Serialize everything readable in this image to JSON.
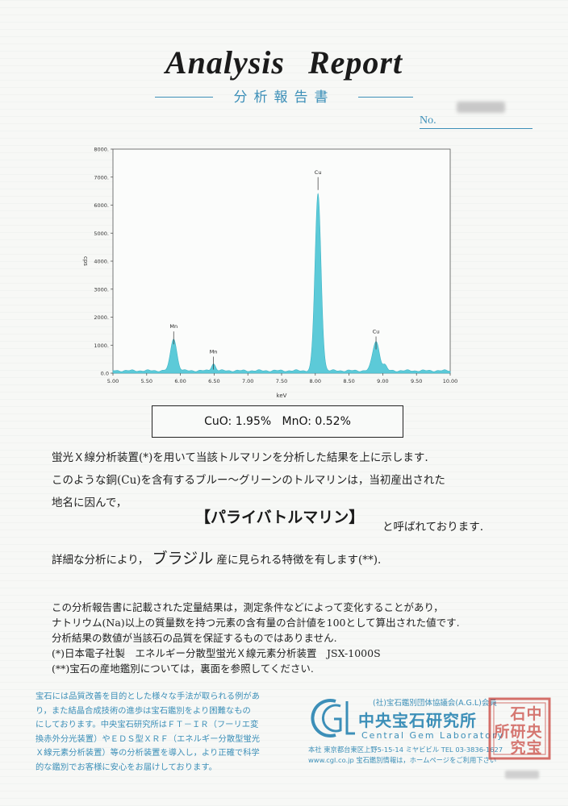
{
  "header": {
    "title": "Analysis   Report",
    "subtitle": "分析報告書",
    "no_label": "No."
  },
  "chart_data": {
    "type": "line",
    "xlabel": "keV",
    "ylabel": "cps",
    "xlim": [
      5.0,
      10.0
    ],
    "ylim": [
      0,
      8000
    ],
    "x_ticks": [
      "5.00",
      "5.50",
      "6.00",
      "6.50",
      "7.00",
      "7.50",
      "8.00",
      "8.50",
      "9.00",
      "9.50",
      "10.00"
    ],
    "y_ticks": [
      "0.0",
      "1000.",
      "2000.",
      "3000.",
      "4000.",
      "5000.",
      "6000.",
      "7000.",
      "8000."
    ],
    "peaks": [
      {
        "label": "Mn",
        "x": 5.9,
        "y": 1150
      },
      {
        "label": "Mn",
        "x": 6.49,
        "y": 250
      },
      {
        "label": "Cu",
        "x": 8.04,
        "y": 6300
      },
      {
        "label": "Cu",
        "x": 8.9,
        "y": 1050
      }
    ],
    "fill_color": "#5ccad8"
  },
  "result": {
    "text": "CuO: 1.95%   MnO: 0.52%"
  },
  "body": {
    "line1": "蛍光Ｘ線分析装置(*)を用いて当該トルマリンを分析した結果を上に示します.",
    "line2": "このような銅(Cu)を含有するブルー〜グリーンのトルマリンは，当初産出された",
    "line3": "地名に因んで，",
    "name": "【パライバトルマリン】",
    "after_name": "と呼ばれております.",
    "line5_pre": "詳細な分析により，",
    "origin": "ブラジル",
    "line5_post": "産に見られる特徴を有します(**)."
  },
  "notes": [
    "この分析報告書に記載された定量結果は，測定条件などによって変化することがあり，",
    "ナトリウム(Na)以上の質量数を持つ元素の含有量の合計値を100として算出された値です.",
    "分析結果の数値が当該石の品質を保証するものではありません.",
    "(*)日本電子社製　エネルギー分散型蛍光Ｘ線元素分析装置　JSX-1000S",
    "(**)宝石の産地鑑別については，裏面を参照してください."
  ],
  "disclaimer": [
    "宝石には品質改善を目的とした様々な手法が取られる例があ",
    "り，また結晶合成技術の進歩は宝石鑑別をより困難なもの",
    "にしております。中央宝石研究所はＦＴ－ＩＲ（フーリエ変",
    "換赤外分光装置）やＥＤＳ型ＸＲＦ（エネルギー分散型蛍光",
    "Ｘ線元素分析装置）等の分析装置を導入し，より正確で科学",
    "的な鑑別でお客様に安心をお届けしております。"
  ],
  "footer": {
    "association": "(社)宝石鑑別団体協議会(A.G.L)会員",
    "org_jp": "中央宝石研究所",
    "org_en": "Central Gem Laboratory",
    "address": "本社 東京都台東区上野5-15-14 ミヤビビル TEL 03-3836-1627",
    "web": "www.cgl.co.jp  宝石鑑別情報は，ホームページをご利用下さい",
    "seal_text": "中央宝石研究所",
    "logo_text": "CGL"
  }
}
